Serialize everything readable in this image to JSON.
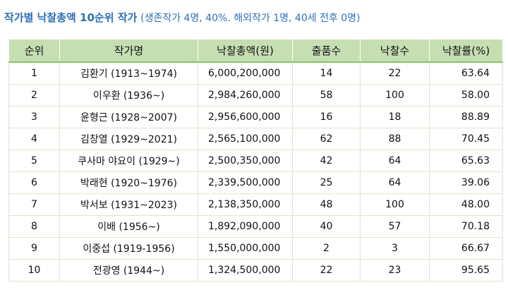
{
  "title": {
    "main": "작가별 낙찰총액 10순위 작가",
    "sub": "(생존작가 4명, 40%. 해외작가 1명, 40세 전후 0명)"
  },
  "table": {
    "headers": [
      "순위",
      "작가명",
      "낙찰총액(원)",
      "출품수",
      "낙찰수",
      "낙찰률(%)"
    ],
    "rows": [
      {
        "rank": "1",
        "artist": "김환기 (1913~1974)",
        "total": "6,000,200,000",
        "entries": "14",
        "sold": "22",
        "rate": "63.64"
      },
      {
        "rank": "2",
        "artist": "이우환 (1936~)",
        "total": "2,984,260,000",
        "entries": "58",
        "sold": "100",
        "rate": "58.00"
      },
      {
        "rank": "3",
        "artist": "윤형근 (1928~2007)",
        "total": "2,956,600,000",
        "entries": "16",
        "sold": "18",
        "rate": "88.89"
      },
      {
        "rank": "4",
        "artist": "김창열 (1929~2021)",
        "total": "2,565,100,000",
        "entries": "62",
        "sold": "88",
        "rate": "70.45"
      },
      {
        "rank": "5",
        "artist": "쿠사마 야요이 (1929~)",
        "total": "2,500,350,000",
        "entries": "42",
        "sold": "64",
        "rate": "65.63"
      },
      {
        "rank": "6",
        "artist": "박래현 (1920~1976)",
        "total": "2,339,500,000",
        "entries": "25",
        "sold": "64",
        "rate": "39.06"
      },
      {
        "rank": "7",
        "artist": "박서보 (1931~2023)",
        "total": "2,138,350,000",
        "entries": "48",
        "sold": "100",
        "rate": "48.00"
      },
      {
        "rank": "8",
        "artist": "이배 (1956~)",
        "total": "1,892,090,000",
        "entries": "40",
        "sold": "57",
        "rate": "70.18"
      },
      {
        "rank": "9",
        "artist": "이중섭 (1919-1956)",
        "total": "1,550,000,000",
        "entries": "2",
        "sold": "3",
        "rate": "66.67"
      },
      {
        "rank": "10",
        "artist": "전광영 (1944~)",
        "total": "1,324,500,000",
        "entries": "22",
        "sold": "23",
        "rate": "95.65"
      }
    ]
  },
  "colors": {
    "title": "#2e6fb7",
    "header_bg": "#c5dfb3",
    "border": "#d8e8cc"
  }
}
